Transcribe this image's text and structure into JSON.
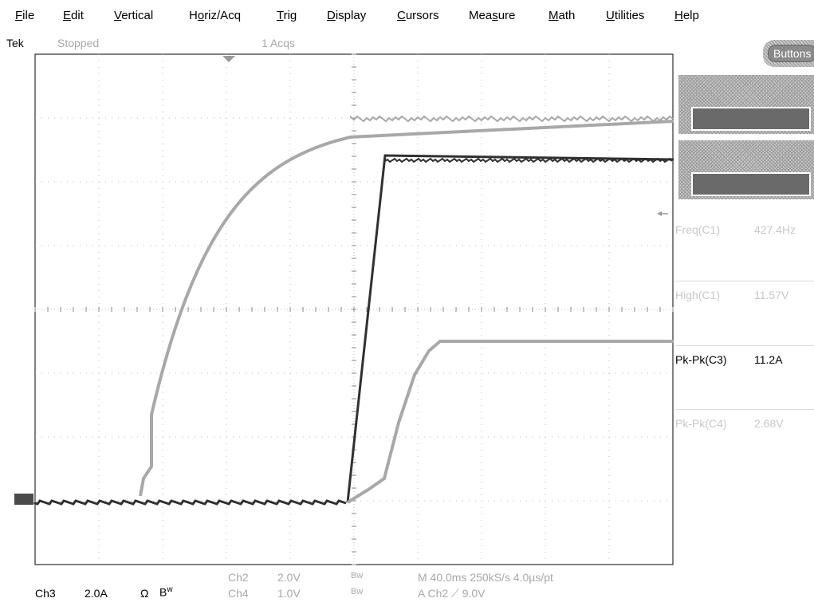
{
  "menu": [
    {
      "label": "File",
      "ul": "F",
      "rest": "ile"
    },
    {
      "label": "Edit",
      "ul": "E",
      "rest": "dit"
    },
    {
      "label": "Vertical",
      "ul": "V",
      "rest": "ertical"
    },
    {
      "label": "Horiz/Acq",
      "pre": "H",
      "ul": "o",
      "rest": "riz/Acq"
    },
    {
      "label": "Trig",
      "ul": "T",
      "rest": "rig"
    },
    {
      "label": "Display",
      "ul": "D",
      "rest": "isplay"
    },
    {
      "label": "Cursors",
      "ul": "C",
      "rest": "ursors"
    },
    {
      "label": "Measure",
      "pre": "Mea",
      "ul": "s",
      "rest": "ure"
    },
    {
      "label": "Math",
      "ul": "M",
      "rest": "ath"
    },
    {
      "label": "Utilities",
      "ul": "U",
      "rest": "tilities"
    },
    {
      "label": "Help",
      "ul": "H",
      "rest": "elp"
    }
  ],
  "status": {
    "brand": "Tek",
    "run_state": "Stopped",
    "acqs": "1 Acqs"
  },
  "buttons_label": "Buttons",
  "measurements": [
    {
      "name": "Freq(C1)",
      "value": "427.4Hz",
      "active": false
    },
    {
      "name": "High(C1)",
      "value": "11.57V",
      "active": false
    },
    {
      "name": "Pk-Pk(C3)",
      "value": "11.2A",
      "active": true
    },
    {
      "name": "Pk-Pk(C4)",
      "value": "2.68V",
      "active": false
    }
  ],
  "readouts": {
    "ch3_label": "Ch3",
    "ch3_scale": "2.0A",
    "ch3_symbol": "Ω",
    "bw": "B",
    "bw_sub": "w",
    "ch2_label": "Ch2",
    "ch2_scale": "2.0V",
    "ch4_label": "Ch4",
    "ch4_scale": "1.0V",
    "bw2": "Bw",
    "bw4": "Bw",
    "timebase": "M 40.0ms 250kS/s  4.0µs/pt",
    "trigger": "A  Ch2  ⟋  9.0V"
  },
  "colors": {
    "grid": "#bcbcbc",
    "trace_light": "#a8a8a8",
    "trace_dark": "#303030",
    "dim_text": "#c8c8c8",
    "panel_dark": "#6a6a6a"
  }
}
